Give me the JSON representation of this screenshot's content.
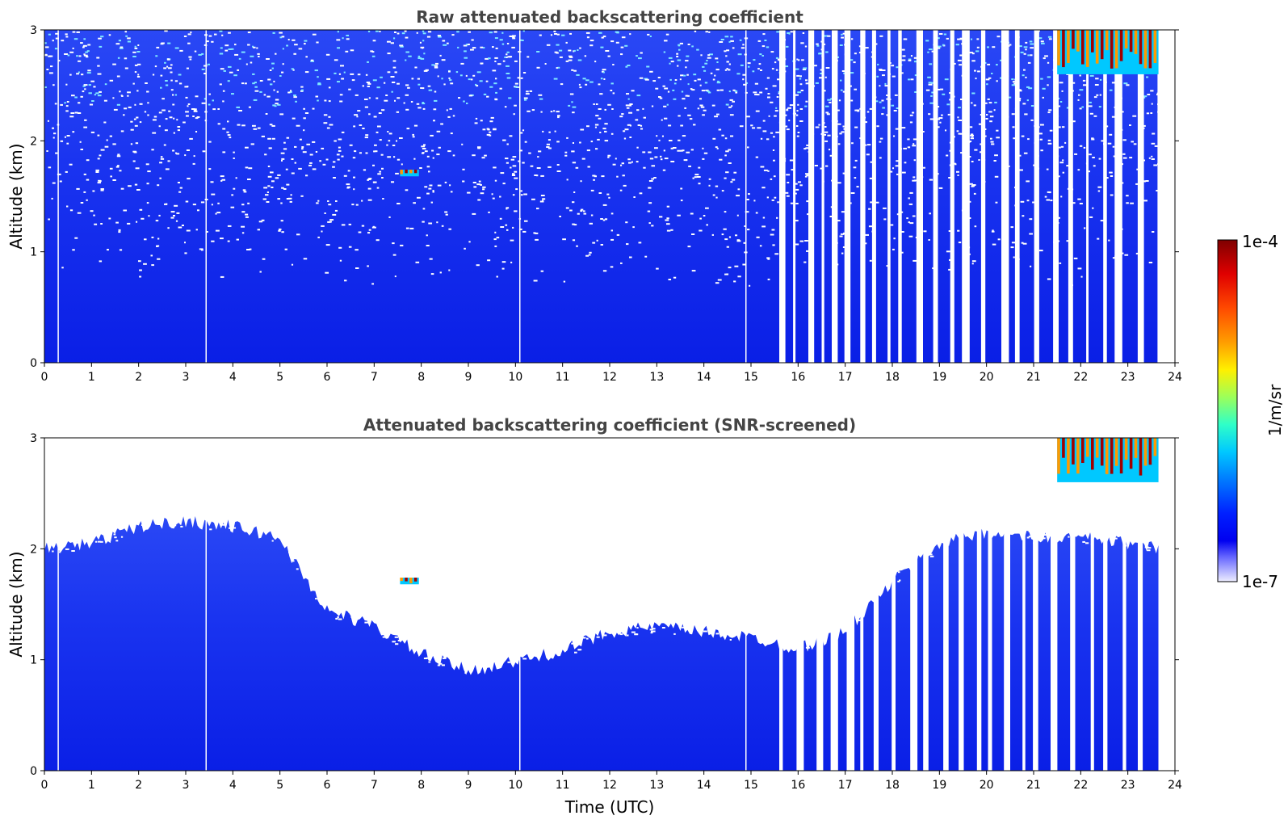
{
  "chart_data": [
    {
      "type": "heatmap",
      "title": "Raw attenuated backscattering coefficient",
      "xlabel": "",
      "ylabel": "Altitude (km)",
      "xlim": [
        0,
        24
      ],
      "ylim": [
        0,
        3
      ],
      "xticks": [
        "0",
        "1",
        "2",
        "3",
        "4",
        "5",
        "6",
        "7",
        "8",
        "9",
        "10",
        "11",
        "12",
        "13",
        "14",
        "15",
        "16",
        "17",
        "18",
        "19",
        "20",
        "21",
        "22",
        "23",
        "24"
      ],
      "yticks": [
        "0",
        "1",
        "2",
        "3"
      ],
      "data_gaps_utc": [
        0.28,
        3.42,
        10.08,
        14.88
      ],
      "intermittent_after_utc": 15.6,
      "end_of_data_utc": 23.65,
      "features": [
        {
          "type": "cloud",
          "x": [
            7.55,
            7.95
          ],
          "y": [
            1.68,
            1.74
          ],
          "level": "high"
        },
        {
          "type": "cloud",
          "x": [
            21.5,
            23.65
          ],
          "y": [
            2.6,
            3.0
          ],
          "level": "high"
        }
      ]
    },
    {
      "type": "heatmap",
      "title": "Attenuated backscattering coefficient (SNR-screened)",
      "xlabel": "Time (UTC)",
      "ylabel": "Altitude (km)",
      "xlim": [
        0,
        24
      ],
      "ylim": [
        0,
        3
      ],
      "xticks": [
        "0",
        "1",
        "2",
        "3",
        "4",
        "5",
        "6",
        "7",
        "8",
        "9",
        "10",
        "11",
        "12",
        "13",
        "14",
        "15",
        "16",
        "17",
        "18",
        "19",
        "20",
        "21",
        "22",
        "23",
        "24"
      ],
      "yticks": [
        "0",
        "1",
        "2",
        "3"
      ],
      "layer_top_km": {
        "x": [
          0,
          1,
          2,
          3,
          4,
          5,
          5.5,
          6,
          7,
          8,
          9,
          10,
          11,
          12,
          13,
          14,
          15,
          16,
          17,
          18,
          19,
          20,
          21,
          22,
          23,
          23.65
        ],
        "y": [
          2.0,
          2.05,
          2.2,
          2.25,
          2.2,
          2.1,
          1.75,
          1.45,
          1.3,
          1.05,
          0.9,
          0.98,
          1.08,
          1.25,
          1.3,
          1.25,
          1.2,
          1.1,
          1.25,
          1.7,
          2.05,
          2.15,
          2.1,
          2.1,
          2.05,
          2.0
        ]
      },
      "features": [
        {
          "type": "cloud",
          "x": [
            7.55,
            7.95
          ],
          "y": [
            1.68,
            1.74
          ],
          "level": "high"
        },
        {
          "type": "cloud",
          "x": [
            21.5,
            23.65
          ],
          "y": [
            2.6,
            3.0
          ],
          "level": "high"
        }
      ]
    }
  ],
  "colorbar": {
    "label": "1/m/sr",
    "max_label": "1e-4",
    "min_label": "1e-7",
    "colors": [
      "#7f0000",
      "#d40000",
      "#ff2000",
      "#ff6a00",
      "#ffae00",
      "#fff000",
      "#b8ff3f",
      "#72ff85",
      "#2fffc8",
      "#00d4ff",
      "#0094ff",
      "#0050ff",
      "#0010ff",
      "#0000f0",
      "#1a1aff",
      "#5555ff",
      "#8888ff",
      "#b0b0ff",
      "#e8e8ff"
    ]
  }
}
